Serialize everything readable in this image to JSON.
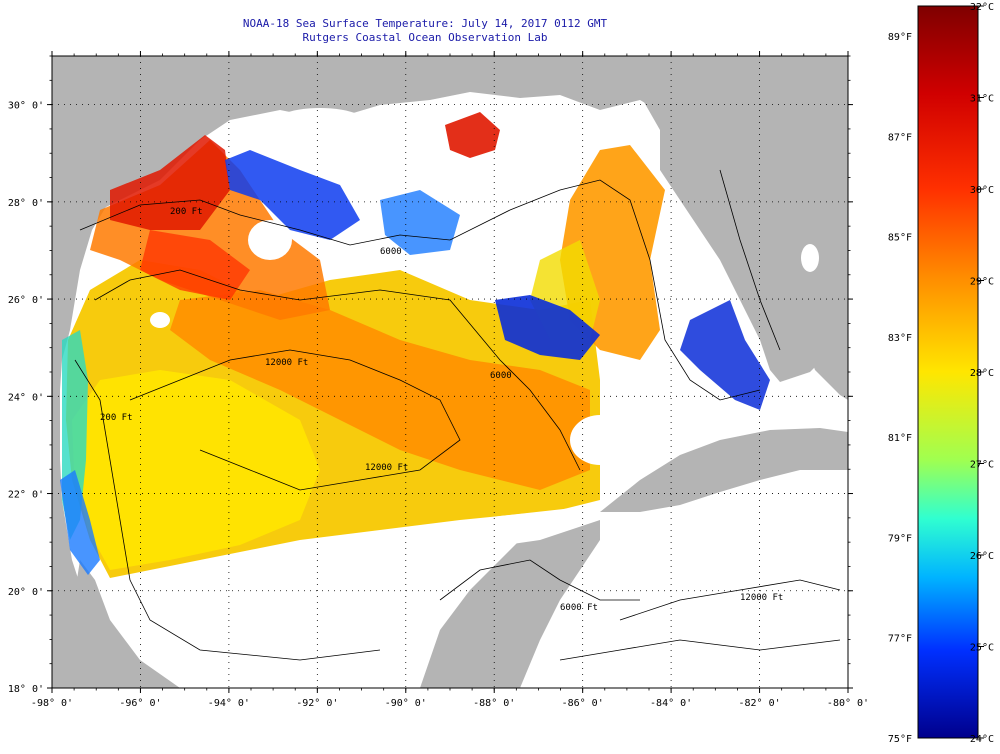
{
  "header": {
    "title": "NOAA-18 Sea Surface Temperature:  July 14, 2017 0112 GMT",
    "subtitle": "Rutgers Coastal Ocean Observation Lab"
  },
  "map": {
    "lon_range": [
      -98,
      -80
    ],
    "lat_range": [
      18,
      31
    ],
    "lon_ticks": [
      "-98° 0'",
      "-96° 0'",
      "-94° 0'",
      "-92° 0'",
      "-90° 0'",
      "-88° 0'",
      "-86° 0'",
      "-84° 0'",
      "-82° 0'",
      "-80° 0'"
    ],
    "lat_ticks": [
      "18° 0'",
      "20° 0'",
      "22° 0'",
      "24° 0'",
      "26° 0'",
      "28° 0'",
      "30° 0'"
    ],
    "colors": {
      "land": "#b4b4b4",
      "nodata": "#ffffff",
      "grid": "#000000"
    },
    "contour_labels": [
      "200 Ft",
      "6000",
      "12000 Ft",
      "6000",
      "12000 Ft",
      "200 Ft",
      "6000 Ft",
      "12000 Ft"
    ]
  },
  "colorbar": {
    "fahrenheit_labels": [
      "89°F",
      "87°F",
      "85°F",
      "83°F",
      "81°F",
      "79°F",
      "77°F",
      "75°F"
    ],
    "celsius_labels": [
      "32°C",
      "31°C",
      "30°C",
      "29°C",
      "28°C",
      "27°C",
      "26°C",
      "25°C",
      "24°C"
    ],
    "range_c": [
      24,
      32
    ],
    "range_f": [
      75,
      89.6
    ]
  }
}
